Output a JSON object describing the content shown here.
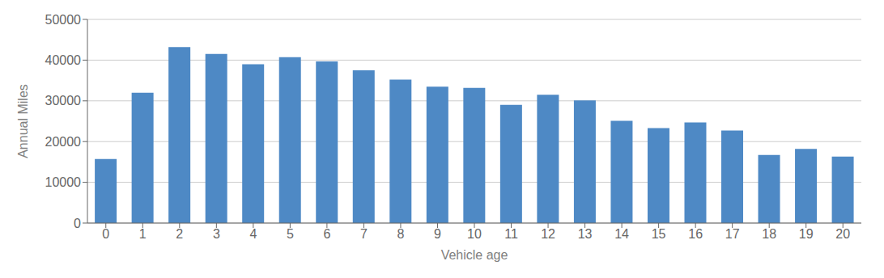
{
  "chart_data": {
    "type": "bar",
    "categories": [
      0,
      1,
      2,
      3,
      4,
      5,
      6,
      7,
      8,
      9,
      10,
      11,
      12,
      13,
      14,
      15,
      16,
      17,
      18,
      19,
      20
    ],
    "values": [
      15700,
      32000,
      43200,
      41500,
      39000,
      40700,
      39700,
      37500,
      35200,
      33500,
      33200,
      29000,
      31500,
      30100,
      25100,
      23300,
      24700,
      22700,
      16700,
      18200,
      16300
    ],
    "color": "#4e89c5",
    "xlabel": "Vehicle age",
    "ylabel": "Annual Miles",
    "ylim": [
      0,
      50000
    ],
    "yticks": [
      0,
      10000,
      20000,
      30000,
      40000,
      50000
    ],
    "grid": true
  }
}
